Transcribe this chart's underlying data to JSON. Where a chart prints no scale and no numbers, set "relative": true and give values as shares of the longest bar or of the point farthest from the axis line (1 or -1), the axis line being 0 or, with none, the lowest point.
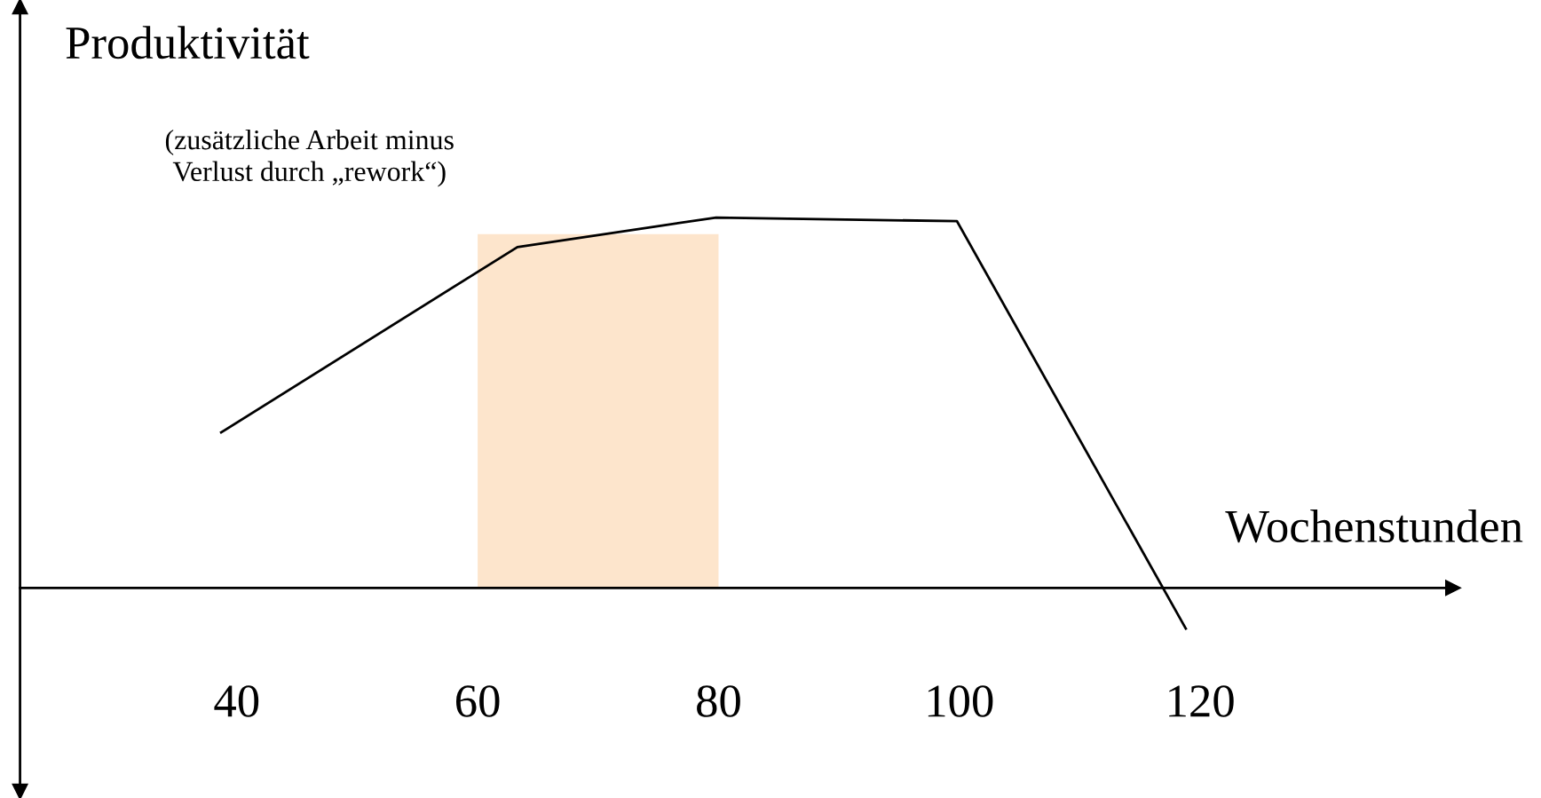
{
  "chart_data": {
    "type": "line",
    "relative": true,
    "ylabel": "Produktivität",
    "xlabel": "Wochenstunden",
    "annotations": [
      "(zusätzliche Arbeit minus\nVerlust durch „rework“)"
    ],
    "series": [
      {
        "color": "#000000",
        "x": [
          38.7,
          63.3,
          79.8,
          99.8,
          118.8
        ],
        "values": [
          0.42,
          0.92,
          1.0,
          0.99,
          -0.11
        ]
      }
    ],
    "xlim": [
      22,
      141
    ],
    "xticks": [
      40,
      60,
      80,
      100,
      120
    ],
    "bands": [
      {
        "axis": "x",
        "from": 60,
        "to": 80,
        "color": "#fde5cc"
      }
    ],
    "grid": false,
    "legend": false,
    "marker": "none",
    "line_style": "solid"
  }
}
